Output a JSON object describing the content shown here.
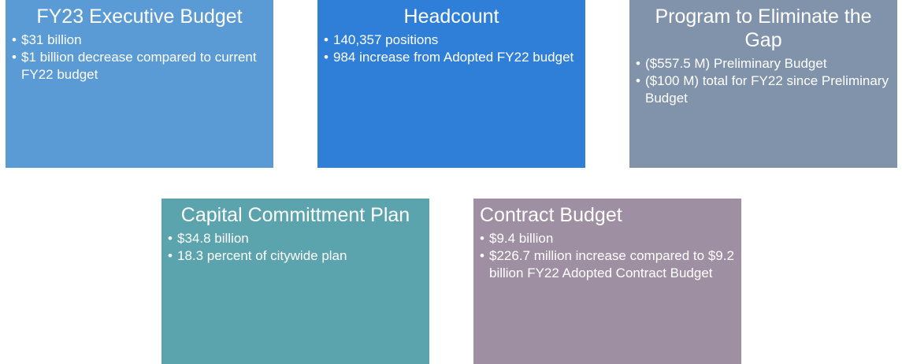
{
  "boxes": [
    {
      "title": "FY23 Executive Budget",
      "bullets": [
        "$31 billion",
        "$1 billion decrease compared to current FY22 budget"
      ]
    },
    {
      "title": "Headcount",
      "bullets": [
        "140,357 positions",
        "984 increase from Adopted FY22 budget"
      ]
    },
    {
      "title": "Program to Eliminate the Gap",
      "bullets": [
        "($557.5 M) Preliminary Budget",
        "($100 M) total for FY22 since Preliminary Budget"
      ]
    },
    {
      "title": "Capital Committment Plan",
      "bullets": [
        "$34.8 billion",
        "18.3 percent of citywide plan"
      ]
    },
    {
      "title": "Contract Budget",
      "bullets": [
        "$9.4 billion",
        "$226.7 million increase compared to $9.2 billion FY22 Adopted Contract Budget"
      ]
    }
  ]
}
